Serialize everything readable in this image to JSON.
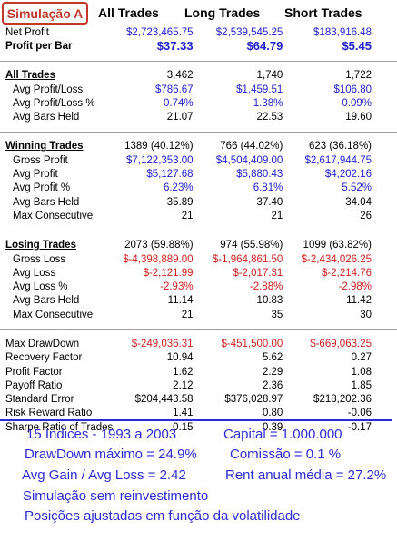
{
  "badge": "Simulação A",
  "columns": [
    "All Trades",
    "Long Trades",
    "Short Trades"
  ],
  "summary": [
    {
      "label": "Net Profit",
      "values": [
        "$2,723,465.75",
        "$2,539,545.25",
        "$183,916.48"
      ],
      "color": "blue",
      "bold": false
    },
    {
      "label": "Profit per Bar",
      "values": [
        "$37.33",
        "$64.79",
        "$5.45"
      ],
      "color": "blue",
      "bold": true
    }
  ],
  "all_trades": {
    "header": {
      "label": "All Trades",
      "values": [
        "3,462",
        "1,740",
        "1,722"
      ]
    },
    "rows": [
      {
        "label": "Avg Profit/Loss",
        "values": [
          "$786.67",
          "$1,459.51",
          "$106.80"
        ],
        "color": "blue"
      },
      {
        "label": "Avg Profit/Loss %",
        "values": [
          "0.74%",
          "1.38%",
          "0.09%"
        ],
        "color": "blue"
      },
      {
        "label": "Avg Bars Held",
        "values": [
          "21.07",
          "22.53",
          "19.60"
        ],
        "color": "black"
      }
    ]
  },
  "winning_trades": {
    "header": {
      "label": "Winning Trades",
      "values": [
        "1389 (40.12%)",
        "766 (44.02%)",
        "623 (36.18%)"
      ]
    },
    "rows": [
      {
        "label": "Gross Profit",
        "values": [
          "$7,122,353.00",
          "$4,504,409.00",
          "$2,617,944.75"
        ],
        "color": "blue"
      },
      {
        "label": "Avg Profit",
        "values": [
          "$5,127.68",
          "$5,880.43",
          "$4,202.16"
        ],
        "color": "blue"
      },
      {
        "label": "Avg Profit %",
        "values": [
          "6.23%",
          "6.81%",
          "5.52%"
        ],
        "color": "blue"
      },
      {
        "label": "Avg Bars Held",
        "values": [
          "35.89",
          "37.40",
          "34.04"
        ],
        "color": "black"
      },
      {
        "label": "Max Consecutive",
        "values": [
          "21",
          "21",
          "26"
        ],
        "color": "black"
      }
    ]
  },
  "losing_trades": {
    "header": {
      "label": "Losing Trades",
      "values": [
        "2073 (59.88%)",
        "974 (55.98%)",
        "1099 (63.82%)"
      ]
    },
    "rows": [
      {
        "label": "Gross Loss",
        "values": [
          "$-4,398,889.00",
          "$-1,964,861.50",
          "$-2,434,026.25"
        ],
        "color": "red"
      },
      {
        "label": "Avg Loss",
        "values": [
          "$-2,121.99",
          "$-2,017.31",
          "$-2,214.76"
        ],
        "color": "red"
      },
      {
        "label": "Avg Loss %",
        "values": [
          "-2.93%",
          "-2.88%",
          "-2.98%"
        ],
        "color": "red"
      },
      {
        "label": "Avg Bars Held",
        "values": [
          "11.14",
          "10.83",
          "11.42"
        ],
        "color": "black"
      },
      {
        "label": "Max Consecutive",
        "values": [
          "21",
          "35",
          "30"
        ],
        "color": "black"
      }
    ]
  },
  "risk": [
    {
      "label": "Max DrawDown",
      "values": [
        "$-249,036.31",
        "$-451,500.00",
        "$-669,063.25"
      ],
      "color": "red"
    },
    {
      "label": "Recovery Factor",
      "values": [
        "10.94",
        "5.62",
        "0.27"
      ],
      "color": "black"
    },
    {
      "label": "Profit Factor",
      "values": [
        "1.62",
        "2.29",
        "1.08"
      ],
      "color": "black"
    },
    {
      "label": "Payoff Ratio",
      "values": [
        "2.12",
        "2.36",
        "1.85"
      ],
      "color": "black"
    },
    {
      "label": "Standard Error",
      "values": [
        "$204,443.58",
        "$376,028.97",
        "$218,202.36"
      ],
      "color": "black"
    },
    {
      "label": "Risk Reward Ratio",
      "values": [
        "1.41",
        "0.80",
        "-0.06"
      ],
      "color": "black"
    },
    {
      "label": "Sharpe Ratio of Trades",
      "values": [
        "0.15",
        "0.39",
        "-0.17"
      ],
      "color": "black"
    }
  ],
  "notes": {
    "indices": "15 Indices - 1993 a 2003",
    "capital": "Capital = 1.000.000",
    "drawdown": "DrawDown máximo = 24.9%",
    "comissao": "Comissão = 0.1 %",
    "avg_gain_loss": "Avg Gain / Avg Loss = 2.42",
    "rent_anual": "Rent anual média = 27.2%",
    "reinvest": "Simulação sem reinvestimento",
    "posicoes": "Posições ajustadas em função da volatilidade"
  },
  "colors": {
    "blue": "#1f1fd1",
    "red": "#d11f1f",
    "accent": "#2b2bd6",
    "badge": "#c0392b"
  }
}
